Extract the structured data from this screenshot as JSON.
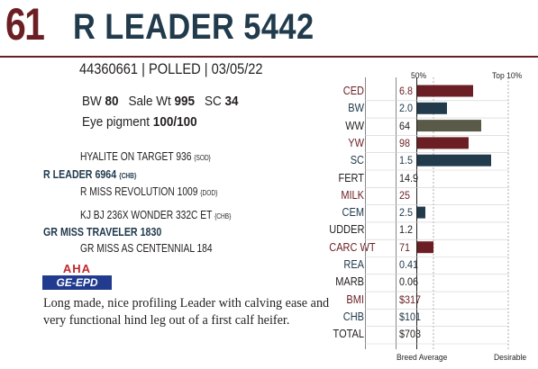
{
  "header": {
    "lot_number": "61",
    "animal_name": "R LEADER 5442"
  },
  "id_line": {
    "registration": "44360661",
    "polled": "POLLED",
    "birth_date": "03/05/22",
    "sep": " | "
  },
  "stats": {
    "bw_label": "BW",
    "bw_value": "80",
    "sale_wt_label": "Sale Wt",
    "sale_wt_value": "995",
    "sc_label": "SC",
    "sc_value": "34",
    "eye_label": "Eye pigment",
    "eye_value": "100/100"
  },
  "pedigree": {
    "sire_sire": "HYALITE ON TARGET 936",
    "sire_sire_tag": "{SOD}",
    "sire": "R LEADER 6964",
    "sire_tag": "{CHB}",
    "sire_dam": "R MISS REVOLUTION 1009",
    "sire_dam_tag": "{DOD}",
    "dam_sire": "KJ BJ 236X WONDER 332C ET",
    "dam_sire_tag": "{CHB}",
    "dam": "GR MISS TRAVELER 1830",
    "dam_dam": "GR MISS AS CENTENNIAL 184"
  },
  "logo": {
    "top": "AHA",
    "bottom": "GE-EPD"
  },
  "description": "Long made, nice profiling Leader with calving ease and very functional hind leg out of a first calf heifer.",
  "chart_labels": {
    "pct50": "50%",
    "top10": "Top 10%",
    "breed_average": "Breed Average",
    "desirable": "Desirable"
  },
  "colors": {
    "maroon": "#6b1f24",
    "navy": "#213b4d",
    "olive": "#5a5a48"
  },
  "chart_data": {
    "type": "bar",
    "orientation": "horizontal",
    "scale": "percentile rank, breed average to top 10%",
    "rows": [
      {
        "label": "CED",
        "value": "6.8",
        "bar": 0.6,
        "color": "#6b1f24",
        "text_color": "red"
      },
      {
        "label": "BW",
        "value": "2.0",
        "bar": 0.32,
        "color": "#213b4d",
        "text_color": "blue"
      },
      {
        "label": "WW",
        "value": "64",
        "bar": 0.69,
        "color": "#5a5a48",
        "text_color": "plain"
      },
      {
        "label": "YW",
        "value": "98",
        "bar": 0.55,
        "color": "#6b1f24",
        "text_color": "red"
      },
      {
        "label": "SC",
        "value": "1.5",
        "bar": 0.8,
        "color": "#213b4d",
        "text_color": "blue"
      },
      {
        "label": "FERT",
        "value": "14.9",
        "bar": 0,
        "color": "",
        "text_color": "plain"
      },
      {
        "label": "MILK",
        "value": "25",
        "bar": 0,
        "color": "",
        "text_color": "red"
      },
      {
        "label": "CEM",
        "value": "2.5",
        "bar": 0.09,
        "color": "#213b4d",
        "text_color": "blue"
      },
      {
        "label": "UDDER",
        "value": "1.2",
        "bar": 0,
        "color": "",
        "text_color": "plain"
      },
      {
        "label": "CARC WT",
        "value": "71",
        "bar": 0.17,
        "color": "#6b1f24",
        "text_color": "red"
      },
      {
        "label": "REA",
        "value": "0.41",
        "bar": 0,
        "color": "",
        "text_color": "blue"
      },
      {
        "label": "MARB",
        "value": "0.06",
        "bar": 0,
        "color": "",
        "text_color": "plain"
      },
      {
        "label": "BMI",
        "value": "$317",
        "bar": 0,
        "color": "",
        "text_color": "red"
      },
      {
        "label": "CHB",
        "value": "$101",
        "bar": 0,
        "color": "",
        "text_color": "blue"
      },
      {
        "label": "TOTAL",
        "value": "$703",
        "bar": 0,
        "color": "",
        "text_color": "plain"
      }
    ]
  }
}
